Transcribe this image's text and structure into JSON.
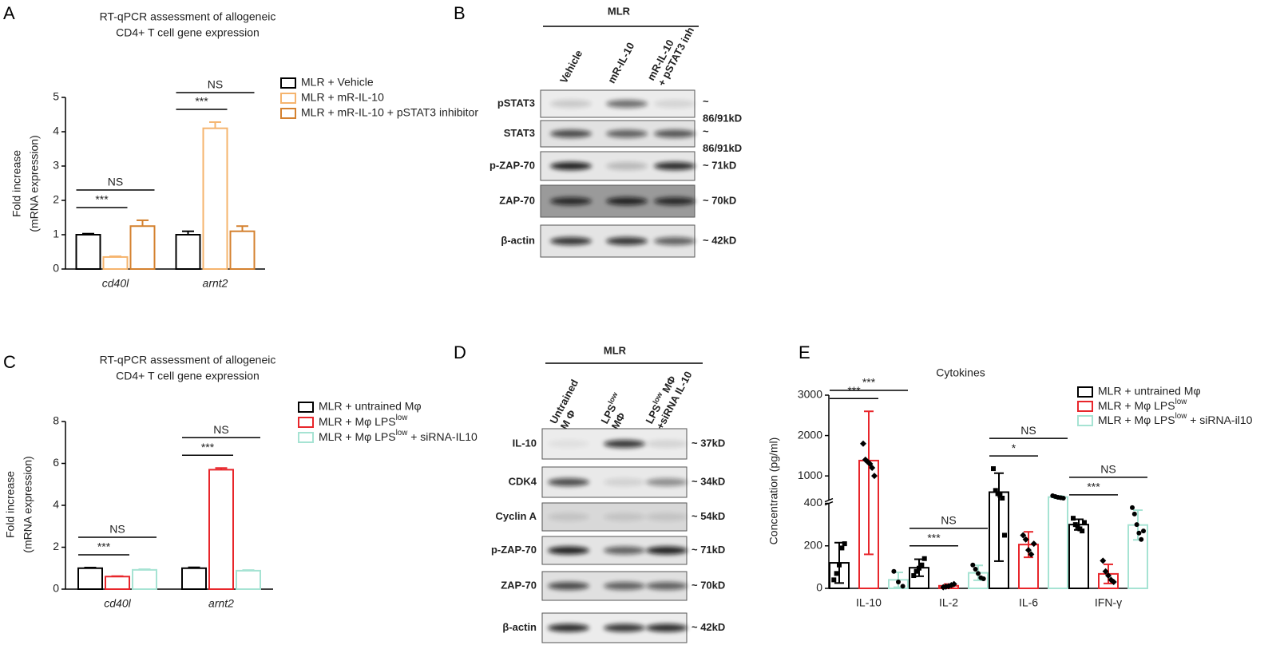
{
  "panel_letters": [
    "A",
    "B",
    "C",
    "D",
    "E"
  ],
  "chart_data": [
    {
      "type": "bar",
      "title": [
        "RT-qPCR assessment of allogeneic",
        "CD4+ T cell gene expression"
      ],
      "ylabel": [
        "Fold increase",
        "(mRNA expression)"
      ],
      "categories": [
        "cd40l",
        "arnt2"
      ],
      "category_font": "italic",
      "ylim": [
        0,
        5
      ],
      "yticks": [
        0,
        1,
        2,
        3,
        4,
        5
      ],
      "error_direction": "up",
      "series": [
        {
          "name": "MLR + Vehicle",
          "color": "#000000",
          "values": [
            1.0,
            1.0
          ],
          "errors": [
            0.03,
            0.1
          ]
        },
        {
          "name": "MLR + mR-IL-10",
          "color": "#f5b46e",
          "values": [
            0.35,
            4.1
          ],
          "errors": [
            0.02,
            0.18
          ]
        },
        {
          "name": "MLR + mR-IL-10 + pSTAT3 inhibitor",
          "color": "#d4812f",
          "values": [
            1.25,
            1.1
          ],
          "errors": [
            0.17,
            0.15
          ]
        }
      ],
      "significance": [
        {
          "category": 0,
          "series": [
            0,
            1
          ],
          "label": "***"
        },
        {
          "category": 0,
          "series": [
            0,
            2
          ],
          "label": "NS"
        },
        {
          "category": 1,
          "series": [
            0,
            1
          ],
          "label": "***"
        },
        {
          "category": 1,
          "series": [
            0,
            2
          ],
          "label": "NS"
        }
      ]
    },
    {
      "type": "bar",
      "title": [
        "RT-qPCR assessment of allogeneic",
        "CD4+ T cell gene expression"
      ],
      "ylabel": [
        "Fold increase",
        "(mRNA expression)"
      ],
      "categories": [
        "cd40l",
        "arnt2"
      ],
      "category_font": "italic",
      "ylim": [
        0,
        8
      ],
      "yticks": [
        0,
        2,
        4,
        6,
        8
      ],
      "error_direction": "up",
      "series": [
        {
          "name": "MLR + untrained Mφ",
          "color": "#000000",
          "values": [
            1.0,
            1.0
          ],
          "errors": [
            0.03,
            0.04
          ]
        },
        {
          "name": [
            "MLR + Mφ LPS",
            {
              "sup": "low"
            }
          ],
          "color": "#e8262b",
          "values": [
            0.6,
            5.7
          ],
          "errors": [
            0.02,
            0.08
          ]
        },
        {
          "name": [
            "MLR + Mφ LPS",
            {
              "sup": "low"
            },
            " + siRNA-IL10"
          ],
          "color": "#a6e3d3",
          "values": [
            0.92,
            0.88
          ],
          "errors": [
            0.03,
            0.03
          ]
        }
      ],
      "significance": [
        {
          "category": 0,
          "series": [
            0,
            1
          ],
          "label": "***"
        },
        {
          "category": 0,
          "series": [
            0,
            2
          ],
          "label": "NS"
        },
        {
          "category": 1,
          "series": [
            0,
            1
          ],
          "label": "***"
        },
        {
          "category": 1,
          "series": [
            0,
            2
          ],
          "label": "NS"
        }
      ]
    },
    {
      "type": "bar",
      "title": [
        "Cytokines"
      ],
      "ylabel": [
        "Concentration (pg/ml)"
      ],
      "categories": [
        "IL-10",
        "IL-2",
        "IL-6",
        "IFN-γ"
      ],
      "ylim": [
        0,
        3000
      ],
      "ybreak": 400,
      "yticks": [
        0,
        200,
        400,
        1000,
        2000,
        3000
      ],
      "error_direction": "both",
      "point_color": "#000000",
      "series": [
        {
          "name": "MLR + untrained Mφ",
          "color": "#000000",
          "marker": "square",
          "values": [
            120,
            97,
            598,
            300
          ],
          "errors": [
            95,
            40,
            470,
            25
          ],
          "points": [
            [
              40,
              70,
              110,
              190,
              210
            ],
            [
              60,
              80,
              95,
              110,
              140
            ],
            [
              1180,
              640,
              560,
              520,
              450,
              250
            ],
            [
              330,
              300,
              290,
              280,
              270,
              310
            ]
          ]
        },
        {
          "name": [
            "MLR + Mφ LPS",
            {
              "sup": "low"
            }
          ],
          "color": "#e8262b",
          "marker": "diamond",
          "values": [
            1380,
            12,
            206,
            68
          ],
          "errors": [
            1220,
            8,
            60,
            45
          ],
          "points": [
            [
              1800,
              1400,
              1350,
              1300,
              1200,
              1000
            ],
            [
              5,
              8,
              10,
              15,
              20
            ],
            [
              250,
              230,
              180,
              160,
              210
            ],
            [
              130,
              80,
              60,
              40,
              30
            ]
          ]
        },
        {
          "name": [
            "MLR + Mφ LPS",
            {
              "sup": "low"
            },
            " + siRNA-il10"
          ],
          "color": "#a6e3d3",
          "marker": "circle",
          "values": [
            40,
            73,
            476,
            298
          ],
          "errors": [
            35,
            35,
            30,
            70
          ],
          "points": [
            [
              80,
              30,
              10
            ],
            [
              110,
              90,
              70,
              50,
              45
            ],
            [
              510,
              490,
              470,
              460,
              450
            ],
            [
              380,
              350,
              300,
              260,
              230,
              270
            ]
          ]
        }
      ],
      "significance": [
        {
          "category": 0,
          "series": [
            0,
            1
          ],
          "label": "***"
        },
        {
          "category": 0,
          "series": [
            0,
            2
          ],
          "label": "***"
        },
        {
          "category": 1,
          "series": [
            0,
            1
          ],
          "label": "***"
        },
        {
          "category": 1,
          "series": [
            0,
            2
          ],
          "label": "NS"
        },
        {
          "category": 2,
          "series": [
            0,
            1
          ],
          "label": "*"
        },
        {
          "category": 2,
          "series": [
            0,
            2
          ],
          "label": "NS"
        },
        {
          "category": 3,
          "series": [
            0,
            1
          ],
          "label": "***"
        },
        {
          "category": 3,
          "series": [
            0,
            2
          ],
          "label": "NS"
        }
      ]
    }
  ],
  "blots": [
    {
      "header": "MLR",
      "lanes": [
        [
          [
            "Vehicle"
          ]
        ],
        [
          [
            "mR-IL-10"
          ]
        ],
        [
          [
            "mR-IL-10"
          ],
          [
            "+ pSTAT3 inh"
          ]
        ]
      ],
      "rows": [
        {
          "label": "pSTAT3",
          "size": [
            "~",
            "86/91kD"
          ]
        },
        {
          "label": "STAT3",
          "size": [
            "~",
            "86/91kD"
          ]
        },
        {
          "label": "p-ZAP-70",
          "size": [
            "~ 71kD"
          ]
        },
        {
          "label": "ZAP-70",
          "size": [
            "~ 70kD"
          ]
        },
        {
          "label": "β-actin",
          "size": [
            "~ 42kD"
          ]
        }
      ]
    },
    {
      "header": "MLR",
      "lanes": [
        [
          [
            "Untrained"
          ],
          [
            "M Φ"
          ]
        ],
        [
          [
            "LPS",
            {
              "sup": "low"
            }
          ],
          [
            "MΦ"
          ]
        ],
        [
          [
            "LPS",
            {
              "sup": "low"
            },
            " MΦ"
          ],
          [
            "+siRNA IL-10"
          ]
        ]
      ],
      "rows": [
        {
          "label": "IL-10",
          "size": [
            "~ 37kD"
          ]
        },
        {
          "label": "CDK4",
          "size": [
            "~ 34kD"
          ]
        },
        {
          "label": "Cyclin A",
          "size": [
            "~ 54kD"
          ]
        },
        {
          "label": "p-ZAP-70",
          "size": [
            "~ 71kD"
          ]
        },
        {
          "label": "ZAP-70",
          "size": [
            "~ 70kD"
          ]
        },
        {
          "label": "β-actin",
          "size": [
            "~ 42kD"
          ]
        }
      ]
    }
  ]
}
